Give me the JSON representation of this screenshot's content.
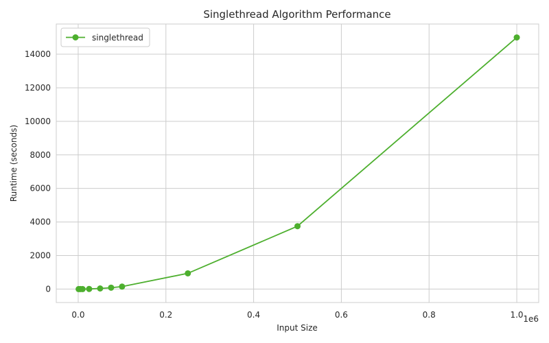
{
  "chart_data": {
    "type": "line",
    "title": "Singlethread Algorithm Performance",
    "xlabel": "Input Size",
    "ylabel": "Runtime (seconds)",
    "x_offset_label": "1e6",
    "xlim": [
      -50000,
      1050000
    ],
    "ylim": [
      -800,
      15800
    ],
    "x_ticks": [
      0,
      200000,
      400000,
      600000,
      800000,
      1000000
    ],
    "x_tick_labels": [
      "0.0",
      "0.2",
      "0.4",
      "0.6",
      "0.8",
      "1.0"
    ],
    "y_ticks": [
      0,
      2000,
      4000,
      6000,
      8000,
      10000,
      12000,
      14000
    ],
    "y_tick_labels": [
      "0",
      "2000",
      "4000",
      "6000",
      "8000",
      "10000",
      "12000",
      "14000"
    ],
    "grid": true,
    "legend_position": "top-left",
    "series": [
      {
        "name": "singlethread",
        "color": "#4daf2e",
        "marker": "circle",
        "x": [
          1000,
          5000,
          10000,
          25000,
          50000,
          75000,
          100000,
          250000,
          500000,
          1000000
        ],
        "y": [
          0.02,
          0.4,
          1.5,
          10,
          38,
          85,
          150,
          940,
          3750,
          15000
        ]
      }
    ]
  }
}
